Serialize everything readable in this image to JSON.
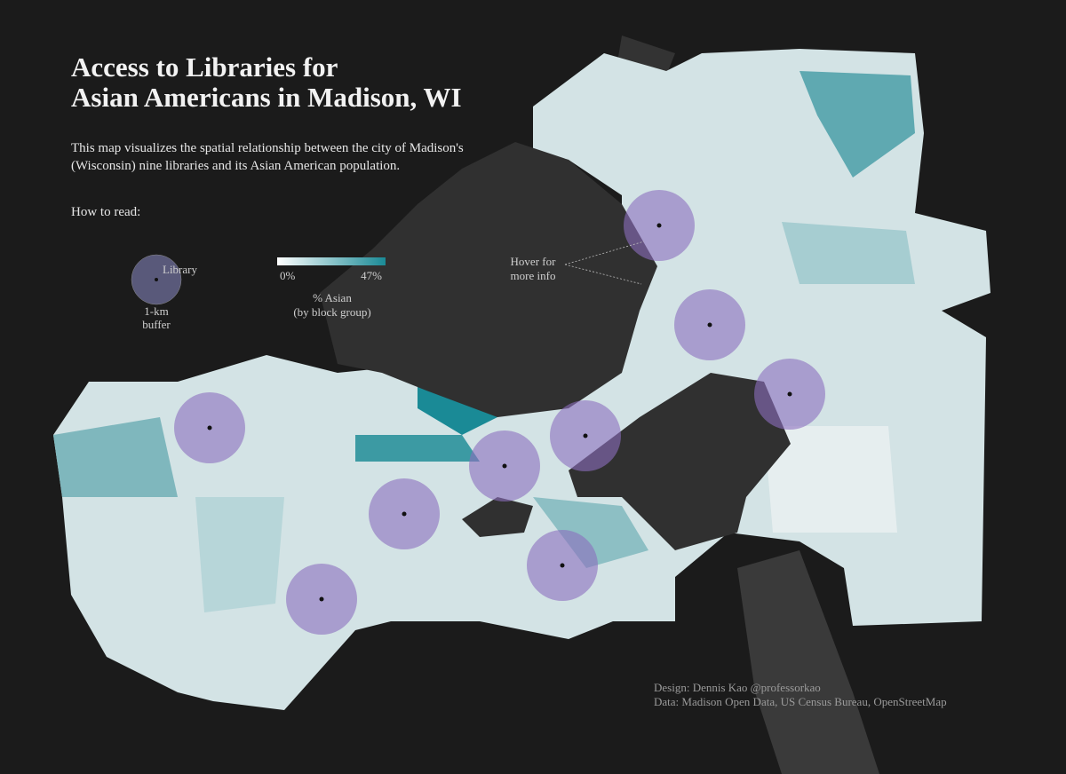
{
  "header": {
    "title": [
      "Access to Libraries for",
      "Asian Americans in Madison, WI"
    ],
    "description": [
      "This map visualizes the spatial relationship between the city of Madison's",
      "(Wisconsin) nine libraries and its Asian American population."
    ]
  },
  "legend": {
    "heading": "How to read:",
    "library": "Library",
    "buffer": [
      "1-km",
      "buffer"
    ],
    "scale_min": "0%",
    "scale_max": "47%",
    "scale_label": [
      "% Asian",
      "(by block group)"
    ]
  },
  "annotation": [
    "Hover for",
    "more info"
  ],
  "credits": [
    "Design: Dennis Kao @professorkao",
    "Data: Madison Open Data, US Census Bureau, OpenStreetMap"
  ]
}
